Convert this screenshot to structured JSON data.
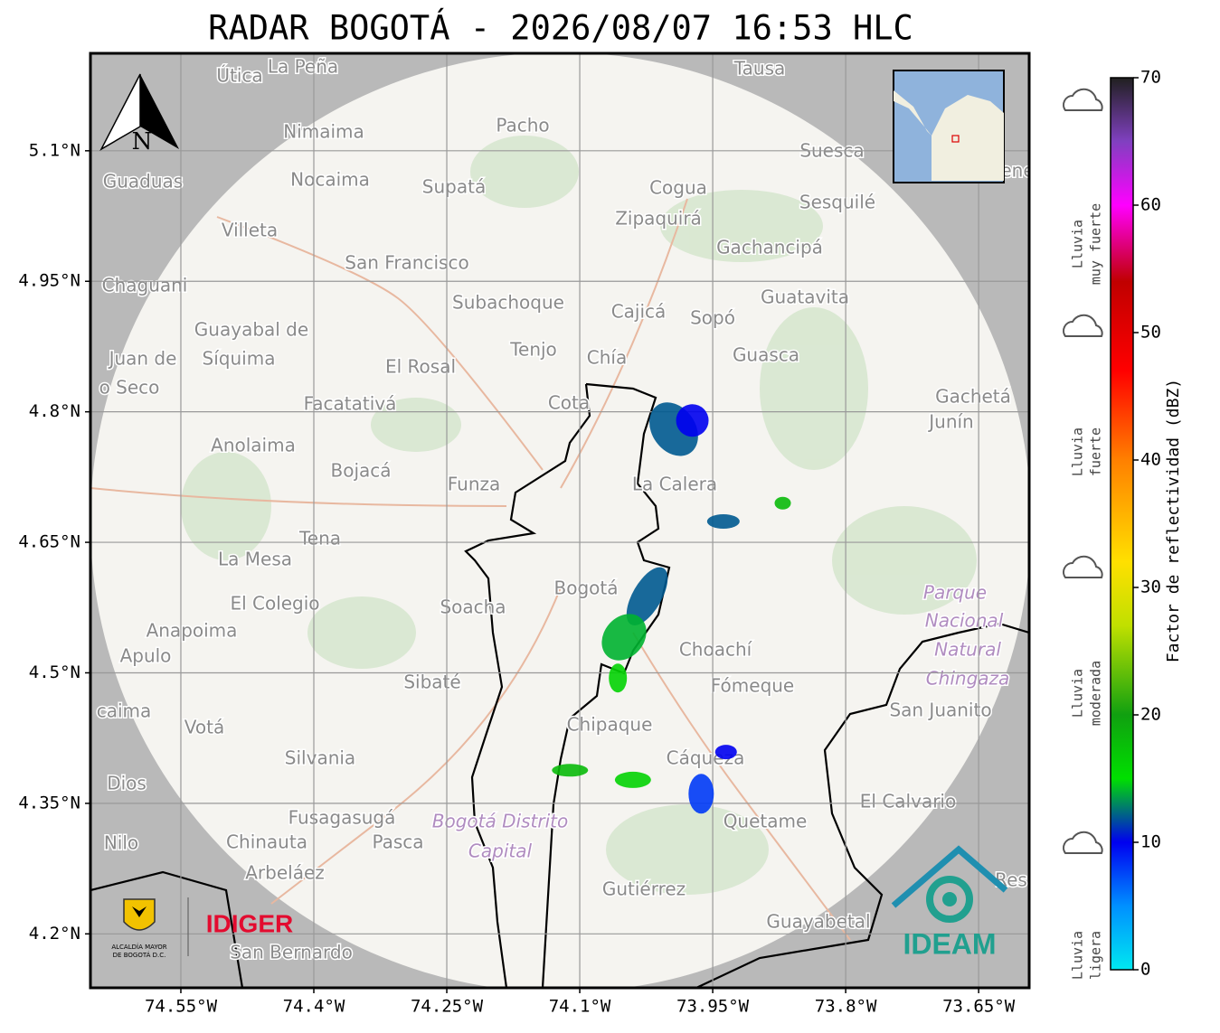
{
  "chart_data": {
    "type": "radar-map",
    "title": "RADAR BOGOTÁ - 2026/08/07 16:53 HLC",
    "xlim": [
      -74.652,
      -73.593
    ],
    "ylim": [
      4.138,
      5.212
    ],
    "xticks": [
      {
        "value": -74.55,
        "label": "74.55°W"
      },
      {
        "value": -74.4,
        "label": "74.4°W"
      },
      {
        "value": -74.25,
        "label": "74.25°W"
      },
      {
        "value": -74.1,
        "label": "74.1°W"
      },
      {
        "value": -73.95,
        "label": "73.95°W"
      },
      {
        "value": -73.8,
        "label": "73.8°W"
      },
      {
        "value": -73.65,
        "label": "73.65°W"
      }
    ],
    "yticks": [
      {
        "value": 5.1,
        "label": "5.1°N"
      },
      {
        "value": 4.95,
        "label": "4.95°N"
      },
      {
        "value": 4.8,
        "label": "4.8°N"
      },
      {
        "value": 4.65,
        "label": "4.65°N"
      },
      {
        "value": 4.5,
        "label": "4.5°N"
      },
      {
        "value": 4.35,
        "label": "4.35°N"
      },
      {
        "value": 4.2,
        "label": "4.2°N"
      }
    ],
    "grid": true,
    "north_label": "N",
    "map_labels": [
      "Útica",
      "La Peña",
      "Tausa",
      "Pacho",
      "Nimaima",
      "Guaduas",
      "Nocaima",
      "Supatá",
      "Cogua",
      "Suesca",
      "Sesquilé",
      "Zipaquirá",
      "Villeta",
      "Gachancipá",
      "San Francisco",
      "Chaguani",
      "Guatavita",
      "Subachoque",
      "Cajicá",
      "Sopó",
      "Guayabal de",
      "Síquima",
      "Tenjo",
      "Chía",
      "Guasca",
      "Juan de",
      "o Seco",
      "El Rosal",
      "Facatativá",
      "Cota",
      "Gachetá",
      "Junín",
      "Anolaima",
      "Bojacá",
      "Funza",
      "La Calera",
      "Tena",
      "La Mesa",
      "El Colegio",
      "Soacha",
      "Bogotá",
      "Parque",
      "Nacional",
      "Natural",
      "Chingaza",
      "Anapoima",
      "Apulo",
      "Choachí",
      "Sibaté",
      "Fómeque",
      "caima",
      "Votá",
      "San Juanito",
      "Chipaque",
      "Silvania",
      "Cáqueza",
      "Dios",
      "El Calvario",
      "Fusagasugá",
      "Bogotá Distrito",
      "Quetame",
      "Nilo",
      "Chinauta",
      "Pasca",
      "Capital",
      "Arbeláez",
      "Gutiérrez",
      "Res",
      "Guayabetal",
      "San Bernardo",
      "ene"
    ],
    "echoes": [
      {
        "lon": -73.994,
        "lat": 4.78,
        "dbz": 12
      },
      {
        "lon": -73.973,
        "lat": 4.79,
        "dbz": 10
      },
      {
        "lon": -73.938,
        "lat": 4.674,
        "dbz": 12
      },
      {
        "lon": -73.871,
        "lat": 4.695,
        "dbz": 18
      },
      {
        "lon": -74.024,
        "lat": 4.588,
        "dbz": 12
      },
      {
        "lon": -74.05,
        "lat": 4.541,
        "dbz": 14
      },
      {
        "lon": -74.057,
        "lat": 4.494,
        "dbz": 16
      },
      {
        "lon": -74.111,
        "lat": 4.388,
        "dbz": 18
      },
      {
        "lon": -74.04,
        "lat": 4.377,
        "dbz": 16
      },
      {
        "lon": -73.963,
        "lat": 4.361,
        "dbz": 8
      },
      {
        "lon": -73.935,
        "lat": 4.409,
        "dbz": 10
      }
    ],
    "colorbar": {
      "label": "Factor de reflectividad (dBZ)",
      "range": [
        0,
        70
      ],
      "ticks": [
        0,
        10,
        20,
        30,
        40,
        50,
        60,
        70
      ],
      "stops": [
        {
          "value": 0,
          "color": "#00e8f0"
        },
        {
          "value": 5,
          "color": "#0090ff"
        },
        {
          "value": 10,
          "color": "#0000f0"
        },
        {
          "value": 15,
          "color": "#00e000"
        },
        {
          "value": 20,
          "color": "#10a010"
        },
        {
          "value": 27,
          "color": "#c0e000"
        },
        {
          "value": 32,
          "color": "#ffe000"
        },
        {
          "value": 40,
          "color": "#ff8000"
        },
        {
          "value": 47,
          "color": "#ff0000"
        },
        {
          "value": 54,
          "color": "#c00000"
        },
        {
          "value": 60,
          "color": "#ff00ff"
        },
        {
          "value": 65,
          "color": "#8040c0"
        },
        {
          "value": 70,
          "color": "#202020"
        }
      ],
      "intensity_labels": [
        {
          "lines": [
            "Lluvia",
            "muy fuerte"
          ]
        },
        {
          "lines": [
            "Lluvia",
            "fuerte"
          ]
        },
        {
          "lines": [
            "Lluvia",
            "moderada"
          ]
        },
        {
          "lines": [
            "Lluvia",
            "ligera"
          ]
        }
      ]
    },
    "logos": {
      "left_org": "IDIGER",
      "left_caption": [
        "ALCALDÍA MAYOR",
        "DE BOGOTÁ D.C."
      ],
      "right_org": "IDEAM"
    }
  }
}
